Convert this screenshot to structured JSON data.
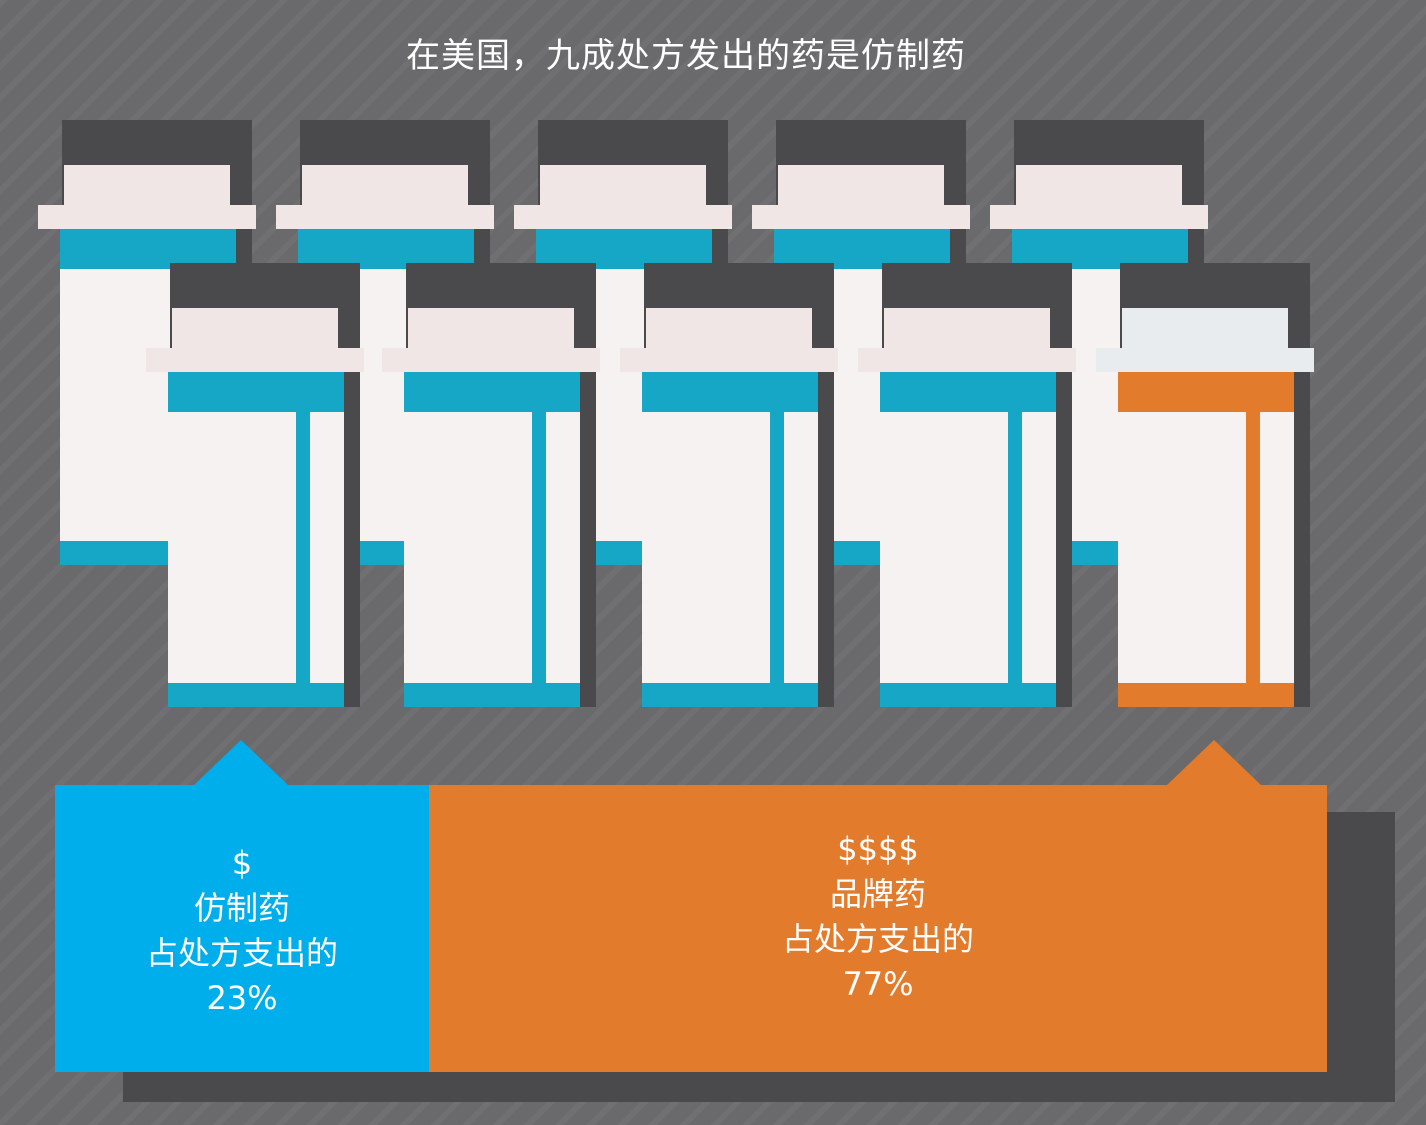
{
  "title": "在美国，九成处方发出的药是仿制药",
  "colors": {
    "generic": "#00aeeb",
    "brand": "#e27b2c",
    "background": "#6a6a6c",
    "bottle_body": "#f6f2f2",
    "bottle_cap": "#f0e6e6",
    "generic_band": "#17a7c6",
    "brand_band": "#e27b2c"
  },
  "bottles": {
    "back_row": [
      {
        "kind": "generic"
      },
      {
        "kind": "generic"
      },
      {
        "kind": "generic"
      },
      {
        "kind": "generic"
      },
      {
        "kind": "generic"
      }
    ],
    "front_row": [
      {
        "kind": "generic"
      },
      {
        "kind": "generic"
      },
      {
        "kind": "generic"
      },
      {
        "kind": "generic"
      },
      {
        "kind": "brand"
      }
    ]
  },
  "generic": {
    "symbol": "$",
    "label": "仿制药",
    "desc": "占处方支出的",
    "share": "23%"
  },
  "brand": {
    "symbol": "$$$$",
    "label": "品牌药",
    "desc": "占处方支出的",
    "share": "77%"
  }
}
